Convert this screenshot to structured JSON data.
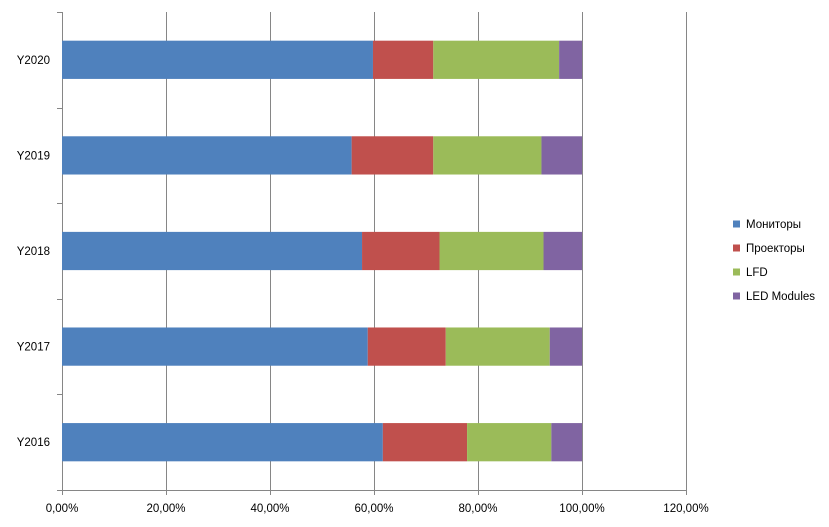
{
  "chart_data": {
    "type": "bar",
    "orientation": "horizontal",
    "stacked": "percent",
    "title": "",
    "xlabel": "",
    "ylabel": "",
    "categories": [
      "Y2016",
      "Y2017",
      "Y2018",
      "Y2019",
      "Y2020"
    ],
    "series": [
      {
        "name": "Мониторы",
        "color": "#4F81BD",
        "values": [
          61.7,
          58.8,
          57.7,
          55.7,
          59.8
        ]
      },
      {
        "name": "Проекторы",
        "color": "#C0504D",
        "values": [
          16.2,
          15.0,
          14.9,
          15.7,
          11.6
        ]
      },
      {
        "name": "LFD",
        "color": "#9BBB59",
        "values": [
          16.2,
          20.0,
          20.0,
          20.8,
          24.2
        ]
      },
      {
        "name": "LED Modules",
        "color": "#8064A2",
        "values": [
          5.9,
          6.2,
          7.4,
          7.8,
          4.4
        ]
      }
    ],
    "xlim": [
      0,
      120
    ],
    "x_ticks": [
      "0,00%",
      "20,00%",
      "40,00%",
      "60,00%",
      "80,00%",
      "100,00%",
      "120,00%"
    ],
    "x_tick_values": [
      0,
      20,
      40,
      60,
      80,
      100,
      120
    ],
    "grid": "vertical",
    "legend_position": "right",
    "gridline_color": "#868686",
    "axis_color": "#868686"
  }
}
